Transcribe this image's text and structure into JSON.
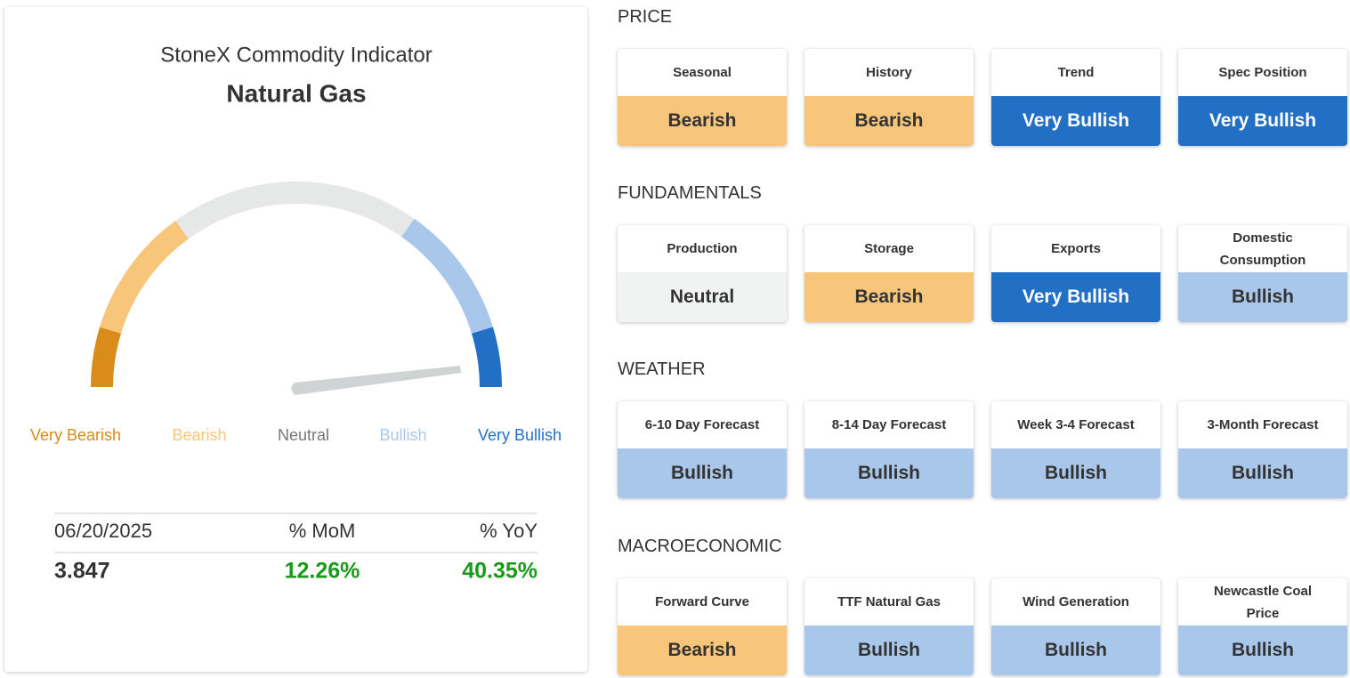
{
  "left": {
    "title": "StoneX Commodity Indicator",
    "commodity": "Natural Gas",
    "gauge_labels": [
      {
        "text": "Very Bearish",
        "color": "#d98c1a"
      },
      {
        "text": "Bearish",
        "color": "#f7c67a"
      },
      {
        "text": "Neutral",
        "color": "#777777"
      },
      {
        "text": "Bullish",
        "color": "#a9c7ea"
      },
      {
        "text": "Very Bullish",
        "color": "#2270c6"
      }
    ],
    "table": {
      "header": [
        "06/20/2025",
        "% MoM",
        "% YoY"
      ],
      "values": [
        "3.847",
        "12.26%",
        "40.35%"
      ],
      "value_colors": [
        "#333333",
        "#1a9a1a",
        "#1a9a1a"
      ]
    }
  },
  "sections": [
    {
      "title": "PRICE",
      "cards": [
        {
          "label": "Seasonal",
          "rating": "Bearish",
          "color": "#f7c67a",
          "text_color": "#333333"
        },
        {
          "label": "History",
          "rating": "Bearish",
          "color": "#f7c67a",
          "text_color": "#333333"
        },
        {
          "label": "Trend",
          "rating": "Very Bullish",
          "color": "#2270c6",
          "text_color": "#ffffff"
        },
        {
          "label": "Spec Position",
          "rating": "Very Bullish",
          "color": "#2270c6",
          "text_color": "#ffffff"
        }
      ]
    },
    {
      "title": "FUNDAMENTALS",
      "cards": [
        {
          "label": "Production",
          "rating": "Neutral",
          "color": "#f1f2f2",
          "text_color": "#333333"
        },
        {
          "label": "Storage",
          "rating": "Bearish",
          "color": "#f7c67a",
          "text_color": "#333333"
        },
        {
          "label": "Exports",
          "rating": "Very Bullish",
          "color": "#2270c6",
          "text_color": "#ffffff"
        },
        {
          "label": "Domestic Consumption",
          "rating": "Bullish",
          "color": "#a9c7ea",
          "text_color": "#333333"
        }
      ]
    },
    {
      "title": "WEATHER",
      "cards": [
        {
          "label": "6-10 Day Forecast",
          "rating": "Bullish",
          "color": "#a9c7ea",
          "text_color": "#333333"
        },
        {
          "label": "8-14 Day Forecast",
          "rating": "Bullish",
          "color": "#a9c7ea",
          "text_color": "#333333"
        },
        {
          "label": "Week 3-4 Forecast",
          "rating": "Bullish",
          "color": "#a9c7ea",
          "text_color": "#333333"
        },
        {
          "label": "3-Month Forecast",
          "rating": "Bullish",
          "color": "#a9c7ea",
          "text_color": "#333333"
        }
      ]
    },
    {
      "title": "MACROECONOMIC",
      "cards": [
        {
          "label": "Forward Curve",
          "rating": "Bearish",
          "color": "#f7c67a",
          "text_color": "#333333"
        },
        {
          "label": "TTF Natural Gas",
          "rating": "Bullish",
          "color": "#a9c7ea",
          "text_color": "#333333"
        },
        {
          "label": "Wind Generation",
          "rating": "Bullish",
          "color": "#a9c7ea",
          "text_color": "#333333"
        },
        {
          "label": "Newcastle Coal Price",
          "rating": "Bullish",
          "color": "#a9c7ea",
          "text_color": "#333333"
        }
      ]
    }
  ]
}
